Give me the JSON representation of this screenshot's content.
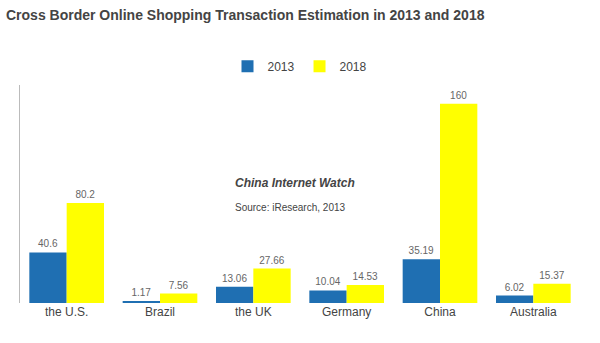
{
  "chart_data": {
    "type": "bar",
    "title": "Cross Border Online Shopping Transaction Estimation in 2013 and 2018",
    "categories": [
      "the U.S.",
      "Brazil",
      "the UK",
      "Germany",
      "China",
      "Australia"
    ],
    "series": [
      {
        "name": "2013",
        "color": "#1F6FB2",
        "values": [
          40.6,
          1.17,
          13.06,
          10.04,
          35.19,
          6.02
        ]
      },
      {
        "name": "2018",
        "color": "#FFFF00",
        "values": [
          80.2,
          7.56,
          27.66,
          14.53,
          160,
          15.37
        ]
      }
    ],
    "ylim": [
      0,
      175
    ],
    "grid": false,
    "legend": "top",
    "data_labels": true,
    "tick_labels": "x",
    "annotations": [
      "China Internet Watch",
      "Source: iResearch, 2013"
    ]
  }
}
